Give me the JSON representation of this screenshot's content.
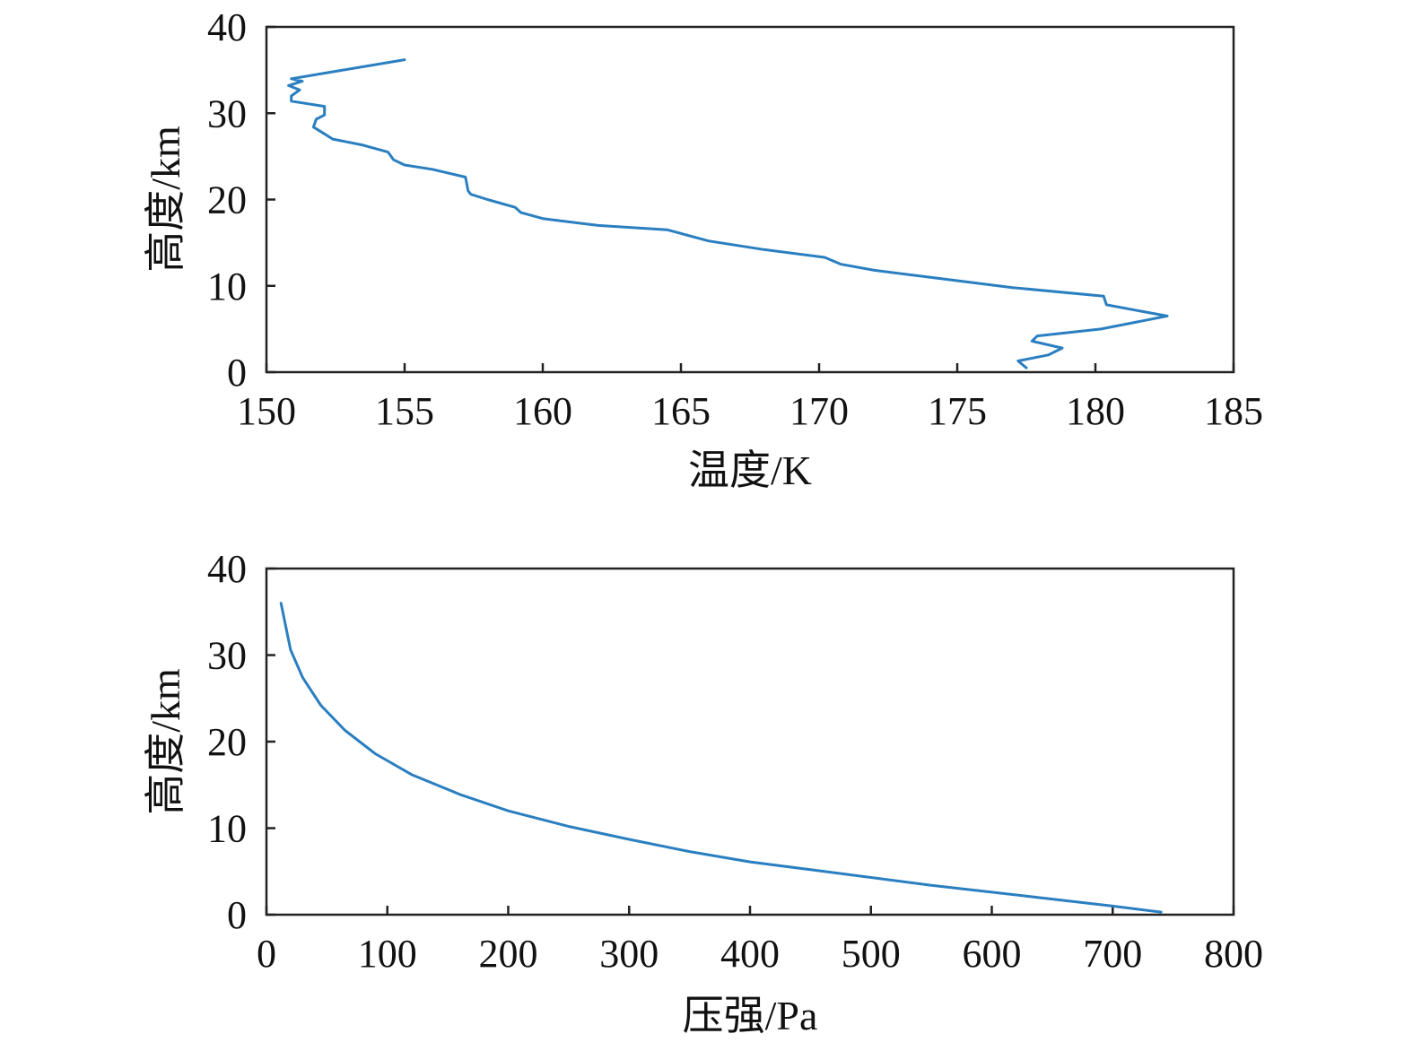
{
  "chart_data": [
    {
      "type": "line",
      "xlabel": "温度/K",
      "ylabel": "高度/km",
      "xlim": [
        150,
        185
      ],
      "ylim": [
        0,
        40
      ],
      "xticks": [
        150,
        155,
        160,
        165,
        170,
        175,
        180,
        185
      ],
      "yticks": [
        0,
        10,
        20,
        30,
        40
      ],
      "color": "#2a7fc0",
      "series": [
        {
          "x": [
            177.5,
            177.2,
            178.3,
            178.8,
            177.7,
            177.9,
            180.2,
            182.6,
            180.4,
            180.3,
            177.0,
            174.0,
            172.0,
            170.8,
            170.2,
            168.0,
            166.0,
            164.5,
            162.0,
            160.0,
            159.2,
            159.0,
            158.0,
            157.4,
            157.3,
            157.2,
            156.0,
            155.0,
            154.6,
            154.4,
            153.5,
            152.4,
            152.1,
            151.7,
            151.8,
            152.1,
            152.1,
            150.9,
            150.9,
            151.2,
            150.8,
            151.3,
            150.9,
            155.0
          ],
          "y": [
            0.5,
            1.3,
            2.0,
            2.8,
            3.6,
            4.2,
            5.0,
            6.5,
            7.8,
            8.8,
            9.8,
            11.0,
            11.8,
            12.5,
            13.3,
            14.2,
            15.2,
            16.5,
            17.0,
            17.8,
            18.5,
            19.1,
            20.0,
            20.6,
            21.0,
            22.6,
            23.5,
            24.0,
            24.6,
            25.5,
            26.3,
            27.0,
            27.6,
            28.4,
            29.3,
            29.8,
            30.8,
            31.4,
            32.0,
            32.7,
            33.2,
            33.7,
            34.0,
            36.2
          ]
        }
      ]
    },
    {
      "type": "line",
      "xlabel": "压强/Pa",
      "ylabel": "高度/km",
      "xlim": [
        0,
        800
      ],
      "ylim": [
        0,
        40
      ],
      "xticks": [
        0,
        100,
        200,
        300,
        400,
        500,
        600,
        700,
        800
      ],
      "yticks": [
        0,
        10,
        20,
        30,
        40
      ],
      "color": "#2a7fc0",
      "series": [
        {
          "x": [
            740,
            700,
            650,
            600,
            550,
            500,
            450,
            400,
            350,
            300,
            250,
            200,
            160,
            120,
            90,
            65,
            45,
            30,
            20,
            12
          ],
          "y": [
            0.3,
            1.0,
            1.8,
            2.6,
            3.4,
            4.3,
            5.2,
            6.1,
            7.3,
            8.7,
            10.2,
            12.0,
            13.9,
            16.2,
            18.6,
            21.3,
            24.2,
            27.4,
            30.6,
            36.0
          ]
        }
      ]
    }
  ]
}
